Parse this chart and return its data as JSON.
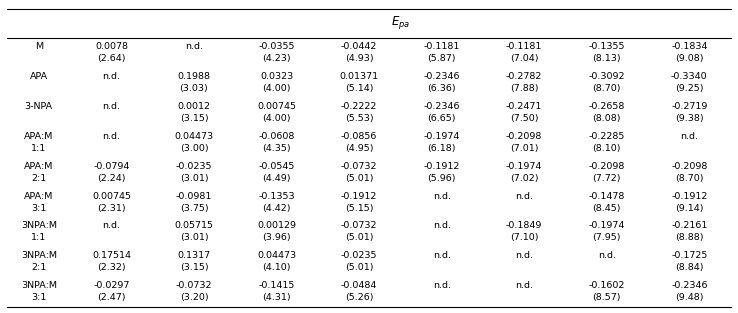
{
  "row_data": [
    {
      "label": [
        "M",
        ""
      ],
      "cells": [
        [
          "0.0078",
          "(2.64)"
        ],
        [
          "n.d.",
          ""
        ],
        [
          "-0.0355",
          "(4.23)"
        ],
        [
          "-0.0442",
          "(4.93)"
        ],
        [
          "-0.1181",
          "(5.87)"
        ],
        [
          "-0.1181",
          "(7.04)"
        ],
        [
          "-0.1355",
          "(8.13)"
        ],
        [
          "-0.1834",
          "(9.08)"
        ]
      ]
    },
    {
      "label": [
        "APA",
        ""
      ],
      "cells": [
        [
          "n.d.",
          ""
        ],
        [
          "0.1988",
          "(3.03)"
        ],
        [
          "0.0323",
          "(4.00)"
        ],
        [
          "0.01371",
          "(5.14)"
        ],
        [
          "-0.2346",
          "(6.36)"
        ],
        [
          "-0.2782",
          "(7.88)"
        ],
        [
          "-0.3092",
          "(8.70)"
        ],
        [
          "-0.3340",
          "(9.25)"
        ]
      ]
    },
    {
      "label": [
        "3-NPA",
        ""
      ],
      "cells": [
        [
          "n.d.",
          ""
        ],
        [
          "0.0012",
          "(3.15)"
        ],
        [
          "0.00745",
          "(4.00)"
        ],
        [
          "-0.2222",
          "(5.53)"
        ],
        [
          "-0.2346",
          "(6.65)"
        ],
        [
          "-0.2471",
          "(7.50)"
        ],
        [
          "-0.2658",
          "(8.08)"
        ],
        [
          "-0.2719",
          "(9.38)"
        ]
      ]
    },
    {
      "label": [
        "APA:M",
        "1:1"
      ],
      "cells": [
        [
          "n.d.",
          ""
        ],
        [
          "0.04473",
          "(3.00)"
        ],
        [
          "-0.0608",
          "(4.35)"
        ],
        [
          "-0.0856",
          "(4.95)"
        ],
        [
          "-0.1974",
          "(6.18)"
        ],
        [
          "-0.2098",
          "(7.01)"
        ],
        [
          "-0.2285",
          "(8.10)"
        ],
        [
          "n.d.",
          ""
        ]
      ]
    },
    {
      "label": [
        "APA:M",
        "2:1"
      ],
      "cells": [
        [
          "-0.0794",
          "(2.24)"
        ],
        [
          "-0.0235",
          "(3.01)"
        ],
        [
          "-0.0545",
          "(4.49)"
        ],
        [
          "-0.0732",
          "(5.01)"
        ],
        [
          "-0.1912",
          "(5.96)"
        ],
        [
          "-0.1974",
          "(7.02)"
        ],
        [
          "-0.2098",
          "(7.72)"
        ],
        [
          "-0.2098",
          "(8.70)"
        ]
      ]
    },
    {
      "label": [
        "APA:M",
        "3:1"
      ],
      "cells": [
        [
          "0.00745",
          "(2.31)"
        ],
        [
          "-0.0981",
          "(3.75)"
        ],
        [
          "-0.1353",
          "(4.42)"
        ],
        [
          "-0.1912",
          "(5.15)"
        ],
        [
          "n.d.",
          ""
        ],
        [
          "n.d.",
          ""
        ],
        [
          "-0.1478",
          "(8.45)"
        ],
        [
          "-0.1912",
          "(9.14)"
        ]
      ]
    },
    {
      "label": [
        "3NPA:M",
        "1:1"
      ],
      "cells": [
        [
          "n.d.",
          ""
        ],
        [
          "0.05715",
          "(3.01)"
        ],
        [
          "0.00129",
          "(3.96)"
        ],
        [
          "-0.0732",
          "(5.01)"
        ],
        [
          "n.d.",
          ""
        ],
        [
          "-0.1849",
          "(7.10)"
        ],
        [
          "-0.1974",
          "(7.95)"
        ],
        [
          "-0.2161",
          "(8.88)"
        ]
      ]
    },
    {
      "label": [
        "3NPA:M",
        "2:1"
      ],
      "cells": [
        [
          "0.17514",
          "(2.32)"
        ],
        [
          "0.1317",
          "(3.15)"
        ],
        [
          "0.04473",
          "(4.10)"
        ],
        [
          "-0.0235",
          "(5.01)"
        ],
        [
          "n.d.",
          ""
        ],
        [
          "n.d.",
          ""
        ],
        [
          "n.d.",
          ""
        ],
        [
          "-0.1725",
          "(8.84)"
        ]
      ]
    },
    {
      "label": [
        "3NPA:M",
        "3:1"
      ],
      "cells": [
        [
          "-0.0297",
          "(2.47)"
        ],
        [
          "-0.0732",
          "(3.20)"
        ],
        [
          "-0.1415",
          "(4.31)"
        ],
        [
          "-0.0484",
          "(5.26)"
        ],
        [
          "n.d.",
          ""
        ],
        [
          "n.d.",
          ""
        ],
        [
          "-0.1602",
          "(8.57)"
        ],
        [
          "-0.2346",
          "(9.48)"
        ]
      ]
    }
  ],
  "bg_color": "#ffffff",
  "text_color": "#000000",
  "font_size": 6.8,
  "label_font_size": 6.8,
  "header_font_size": 8.5,
  "fig_width": 7.38,
  "fig_height": 3.13,
  "dpi": 100
}
